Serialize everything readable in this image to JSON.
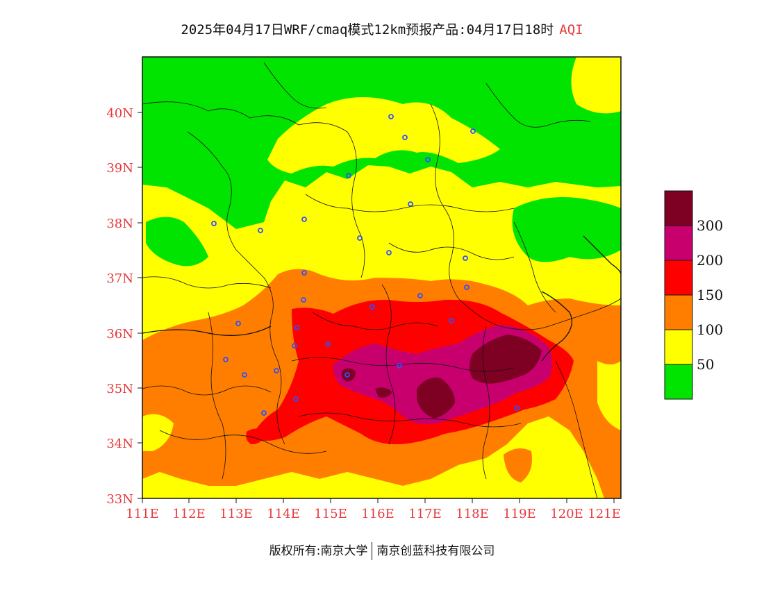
{
  "title": {
    "main": "2025年04月17日WRF/cmaq模式12km预报产品:04月17日18时",
    "product": "AQI"
  },
  "map": {
    "lon_range": [
      111,
      121.4
    ],
    "lat_range": [
      33,
      41
    ],
    "x_ticks": [
      "111E",
      "112E",
      "113E",
      "114E",
      "115E",
      "116E",
      "117E",
      "118E",
      "119E",
      "120E",
      "121E"
    ],
    "y_ticks": [
      "33N",
      "34N",
      "35N",
      "36N",
      "37N",
      "38N",
      "39N",
      "40N"
    ]
  },
  "legend": {
    "labels": [
      "50",
      "100",
      "150",
      "200",
      "300"
    ],
    "colors": [
      "#00e400",
      "#ffff00",
      "#ff7e00",
      "#ff0000",
      "#c8006e",
      "#7e0023"
    ]
  },
  "footer": {
    "left": "版权所有:南京大学",
    "right": "南京创蓝科技有限公司"
  }
}
